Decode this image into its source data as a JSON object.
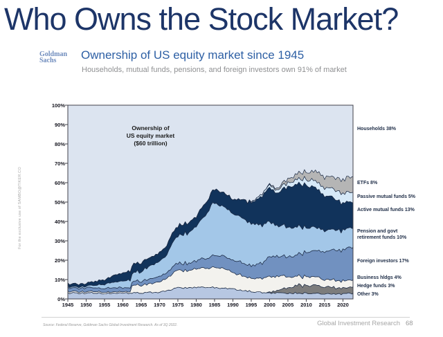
{
  "page": {
    "title": "Who Owns the Stock Market?"
  },
  "watermark": "For the exclusive use of SAMBO@TIKER.CO",
  "header": {
    "logo_line1": "Goldman",
    "logo_line2": "Sachs",
    "heading": "Ownership of US equity market since 1945",
    "subheading": "Households, mutual funds, pensions, and foreign investors own 91% of market"
  },
  "chart_data": {
    "type": "area",
    "stacked": true,
    "title": "Ownership of US equity market since 1945",
    "annotation_lines": [
      "Ownership of",
      "US equity market",
      "($60 trillion)"
    ],
    "x_range": [
      1945,
      2022.75
    ],
    "y_range": [
      0,
      100
    ],
    "grid": false,
    "legend_position": "right-outside",
    "outline_color": "#1c2b45",
    "frame_color": "#40404a",
    "y_label_ticks": [
      "100%",
      "90%",
      "80%",
      "70%",
      "60%",
      "50%",
      "40%",
      "30%",
      "20%",
      "10%",
      "0%"
    ],
    "x_label_ticks": [
      "1945",
      "1950",
      "1955",
      "1960",
      "1965",
      "1970",
      "1975",
      "1980",
      "1985",
      "1990",
      "1995",
      "2000",
      "2005",
      "2010",
      "2015",
      "2020"
    ],
    "households": {
      "name": "Households",
      "share_label": "Households 38%",
      "color": "#dce4f0"
    },
    "series": [
      {
        "name": "Other",
        "share_label": "Other 3%",
        "color": "#b7c7e2",
        "points": [
          [
            1945,
            3
          ],
          [
            1950,
            3
          ],
          [
            1955,
            3
          ],
          [
            1960,
            3
          ],
          [
            1965,
            3.2
          ],
          [
            1970,
            3.5
          ],
          [
            1972,
            4
          ],
          [
            1974,
            5.5
          ],
          [
            1980,
            6
          ],
          [
            1985,
            6
          ],
          [
            1988,
            5.5
          ],
          [
            1990,
            5
          ],
          [
            1995,
            4
          ],
          [
            1998,
            3.2
          ],
          [
            2000,
            3
          ],
          [
            2005,
            3
          ],
          [
            2010,
            3
          ],
          [
            2015,
            2.6
          ],
          [
            2020,
            2.5
          ],
          [
            2022.75,
            3
          ]
        ]
      },
      {
        "name": "Hedge funds",
        "share_label": "Hedge funds 3%",
        "color": "#7c7c7c",
        "points": [
          [
            1945,
            0
          ],
          [
            1999,
            0
          ],
          [
            2000,
            0.5
          ],
          [
            2002,
            1.2
          ],
          [
            2005,
            3
          ],
          [
            2007,
            3.5
          ],
          [
            2008,
            4.5
          ],
          [
            2009,
            3.8
          ],
          [
            2010,
            4
          ],
          [
            2012,
            4.2
          ],
          [
            2015,
            3.6
          ],
          [
            2018,
            3.2
          ],
          [
            2020,
            3
          ],
          [
            2022.75,
            3
          ]
        ]
      },
      {
        "name": "Business hldgs",
        "share_label": "Business hldgs 4%",
        "color": "#f3f2ee",
        "points": [
          [
            1945,
            0.8
          ],
          [
            1950,
            0.7
          ],
          [
            1955,
            0.7
          ],
          [
            1960,
            0.7
          ],
          [
            1962,
            0.7
          ],
          [
            1962.3,
            3.6
          ],
          [
            1965,
            4
          ],
          [
            1968,
            4.5
          ],
          [
            1970,
            5.5
          ],
          [
            1972,
            6
          ],
          [
            1973,
            7.5
          ],
          [
            1974,
            9
          ],
          [
            1975,
            9
          ],
          [
            1978,
            9
          ],
          [
            1980,
            9.5
          ],
          [
            1983,
            10
          ],
          [
            1985,
            10.5
          ],
          [
            1987,
            10.5
          ],
          [
            1990,
            8.5
          ],
          [
            1993,
            7.5
          ],
          [
            1995,
            7
          ],
          [
            1998,
            7.5
          ],
          [
            2000,
            8
          ],
          [
            2003,
            7
          ],
          [
            2005,
            6
          ],
          [
            2008,
            4.5
          ],
          [
            2010,
            4.5
          ],
          [
            2015,
            4
          ],
          [
            2020,
            3.5
          ],
          [
            2022.75,
            4
          ]
        ]
      },
      {
        "name": "Foreign investors",
        "share_label": "Foreign investors 17%",
        "color": "#7191c0",
        "points": [
          [
            1945,
            2
          ],
          [
            1950,
            2
          ],
          [
            1955,
            2
          ],
          [
            1960,
            2
          ],
          [
            1965,
            2
          ],
          [
            1970,
            3
          ],
          [
            1975,
            3.5
          ],
          [
            1980,
            4
          ],
          [
            1985,
            6
          ],
          [
            1990,
            6.5
          ],
          [
            1995,
            6.5
          ],
          [
            1998,
            8
          ],
          [
            2000,
            10.5
          ],
          [
            2003,
            10
          ],
          [
            2005,
            10.5
          ],
          [
            2008,
            11
          ],
          [
            2010,
            12.5
          ],
          [
            2015,
            14.5
          ],
          [
            2018,
            15.5
          ],
          [
            2020,
            16
          ],
          [
            2022.75,
            17
          ]
        ]
      },
      {
        "name": "Pension and govt retirement funds",
        "share_label": "Pension and govt retirement funds 10%",
        "color": "#a3c7e8",
        "points": [
          [
            1945,
            0.5
          ],
          [
            1950,
            0.8
          ],
          [
            1955,
            2
          ],
          [
            1960,
            3.5
          ],
          [
            1965,
            5
          ],
          [
            1970,
            8
          ],
          [
            1972,
            9
          ],
          [
            1973,
            12
          ],
          [
            1974,
            13
          ],
          [
            1975,
            14
          ],
          [
            1978,
            16
          ],
          [
            1980,
            18
          ],
          [
            1982,
            21
          ],
          [
            1984,
            26
          ],
          [
            1985,
            27
          ],
          [
            1987,
            26
          ],
          [
            1990,
            24
          ],
          [
            1995,
            22
          ],
          [
            2000,
            18
          ],
          [
            2002,
            16
          ],
          [
            2005,
            15.5
          ],
          [
            2010,
            13
          ],
          [
            2015,
            11
          ],
          [
            2020,
            10
          ],
          [
            2022.75,
            10
          ]
        ]
      },
      {
        "name": "Active mutual funds",
        "share_label": "Active mutual funds 13%",
        "color": "#11335b",
        "points": [
          [
            1945,
            1.5
          ],
          [
            1950,
            1.5
          ],
          [
            1955,
            2.5
          ],
          [
            1960,
            4
          ],
          [
            1965,
            4.5
          ],
          [
            1970,
            4.5
          ],
          [
            1975,
            5
          ],
          [
            1980,
            5
          ],
          [
            1985,
            7
          ],
          [
            1990,
            7.5
          ],
          [
            1995,
            11
          ],
          [
            2000,
            17.5
          ],
          [
            2002,
            16.5
          ],
          [
            2003,
            18
          ],
          [
            2005,
            21
          ],
          [
            2008,
            22
          ],
          [
            2010,
            22
          ],
          [
            2013,
            20
          ],
          [
            2015,
            18
          ],
          [
            2018,
            16
          ],
          [
            2020,
            14
          ],
          [
            2022.75,
            13
          ]
        ]
      },
      {
        "name": "Passive mutual funds",
        "share_label": "Passive mutual funds 5%",
        "color": "#d6e9f8",
        "points": [
          [
            1945,
            0
          ],
          [
            1994,
            0
          ],
          [
            1995,
            0.5
          ],
          [
            2000,
            1.5
          ],
          [
            2005,
            2
          ],
          [
            2010,
            3
          ],
          [
            2015,
            4
          ],
          [
            2020,
            5
          ],
          [
            2022.75,
            5
          ]
        ]
      },
      {
        "name": "ETFs",
        "share_label": "ETFs 8%",
        "color": "#b5b5b5",
        "points": [
          [
            1945,
            0
          ],
          [
            1999,
            0
          ],
          [
            2000,
            0.5
          ],
          [
            2003,
            1
          ],
          [
            2005,
            2
          ],
          [
            2008,
            3
          ],
          [
            2010,
            4
          ],
          [
            2013,
            5
          ],
          [
            2015,
            5.5
          ],
          [
            2018,
            6.5
          ],
          [
            2020,
            7
          ],
          [
            2022.75,
            8
          ]
        ]
      }
    ]
  },
  "footer": {
    "source": "Source: Federal Reserve, Goldman Sachs Global Investment Research. As of 3Q 2022.",
    "label": "Global Investment Research",
    "page_number": "68"
  }
}
